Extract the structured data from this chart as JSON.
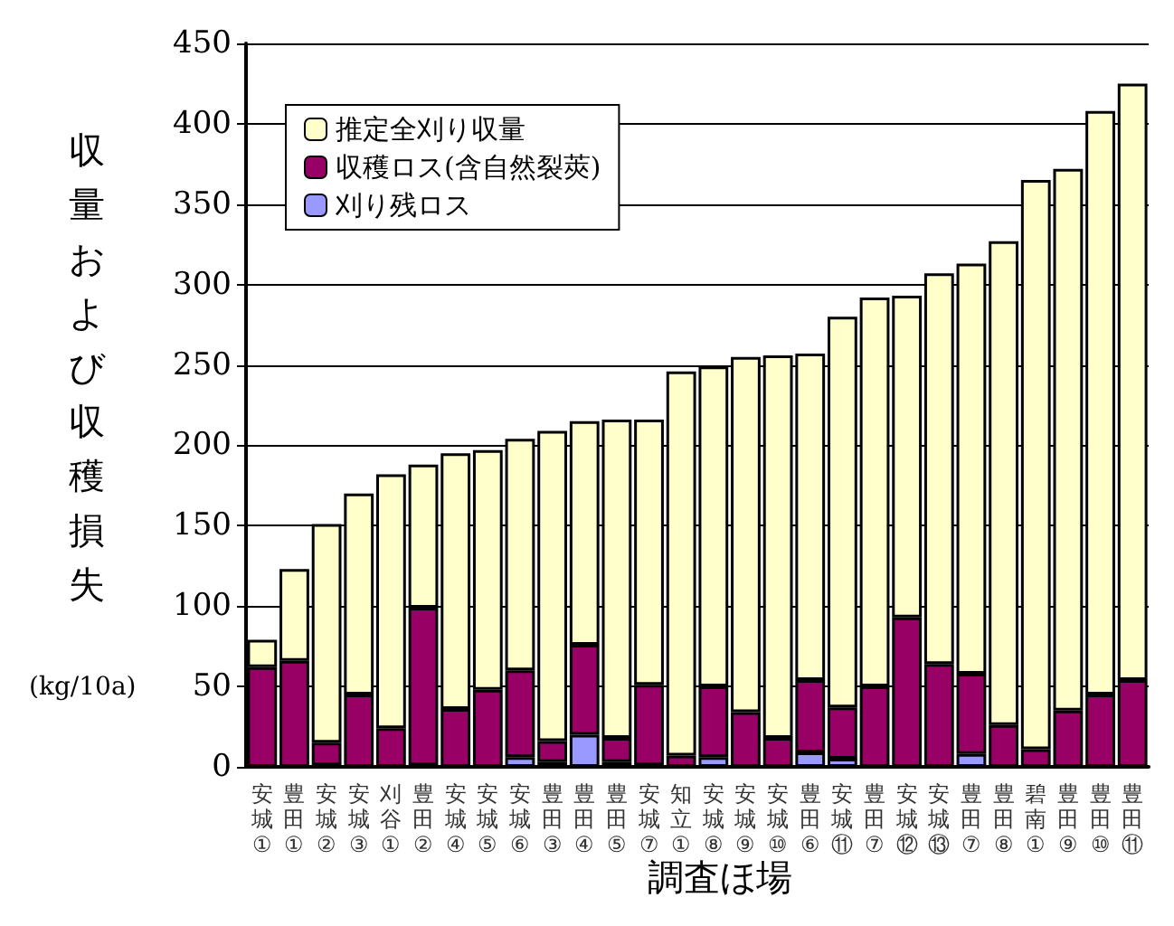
{
  "chart_data": {
    "type": "bar",
    "stacked": true,
    "xlabel": "調査ほ場",
    "ylabel": "収量および収穫損失",
    "annotations": [
      "(kg/10a)"
    ],
    "categories": [
      "安城①",
      "豊田①",
      "安城②",
      "安城③",
      "刈谷①",
      "豊田②",
      "安城④",
      "安城⑤",
      "安城⑥",
      "豊田③",
      "豊田④",
      "豊田⑤",
      "安城⑦",
      "知立①",
      "安城⑧",
      "安城⑨",
      "安城⑩",
      "豊田⑥",
      "安城⑪",
      "豊田⑦",
      "安城⑫",
      "安城⑬",
      "豊田⑦",
      "豊田⑧",
      "碧南①",
      "豊田⑨",
      "豊田⑩",
      "豊田⑪"
    ],
    "series": [
      {
        "name": "刈り残ロス",
        "color": "#9999ff",
        "values": [
          0,
          0,
          1,
          null,
          0,
          1,
          0,
          null,
          6,
          3,
          20,
          3,
          1,
          0,
          6,
          0,
          0,
          9,
          5,
          0,
          0,
          0,
          8,
          null,
          0,
          0,
          0,
          null
        ]
      },
      {
        "name": "収穫ロス(含自然裂莢)",
        "color": "#990066",
        "values": [
          62,
          66,
          14,
          45,
          24,
          98,
          36,
          48,
          54,
          13,
          56,
          15,
          50,
          7,
          44,
          34,
          18,
          45,
          32,
          50,
          93,
          64,
          50,
          26,
          11,
          35,
          45,
          54
        ]
      },
      {
        "name": "推定全刈り収量",
        "color": "#ffffcc",
        "values": [
          17,
          57,
          136,
          125,
          158,
          89,
          159,
          149,
          144,
          193,
          139,
          198,
          165,
          239,
          199,
          221,
          238,
          203,
          243,
          242,
          200,
          243,
          255,
          301,
          354,
          337,
          363,
          371
        ]
      }
    ],
    "ylim": [
      0,
      450
    ],
    "yticks": [
      0,
      50,
      100,
      150,
      200,
      250,
      300,
      350,
      400,
      450
    ],
    "grid": "y",
    "legend": "top left"
  }
}
